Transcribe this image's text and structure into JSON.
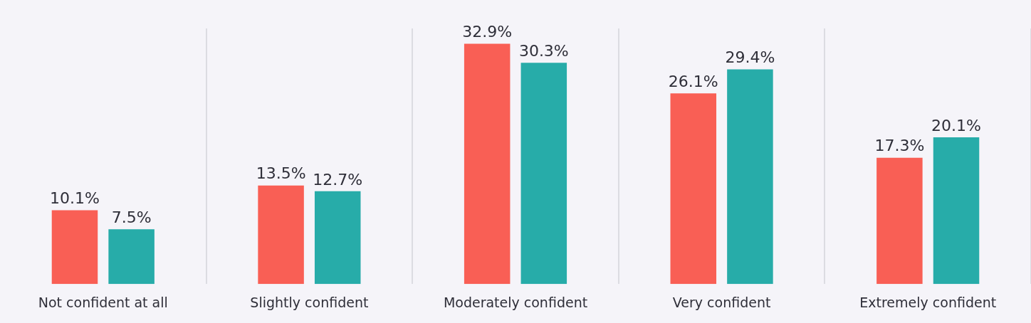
{
  "chart_data": {
    "type": "bar",
    "categories": [
      "Not confident at all",
      "Slightly confident",
      "Moderately confident",
      "Very confident",
      "Extremely confident"
    ],
    "series": [
      {
        "color": "#f95f55",
        "values": [
          10.1,
          13.5,
          32.9,
          26.1,
          17.3
        ],
        "value_labels": [
          "10.1%",
          "13.5%",
          "32.9%",
          "26.1%",
          "17.3%"
        ]
      },
      {
        "color": "#27aca9",
        "values": [
          7.5,
          12.7,
          30.3,
          29.4,
          20.1
        ],
        "value_labels": [
          "7.5%",
          "12.7%",
          "30.3%",
          "29.4%",
          "20.1%"
        ]
      }
    ],
    "grid": "x",
    "legend": false
  }
}
